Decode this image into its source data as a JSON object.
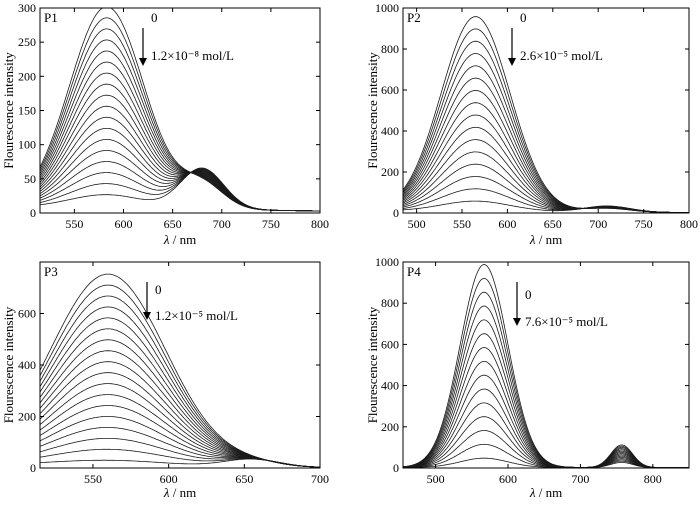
{
  "chart_data": [
    {
      "type": "line",
      "panel_label": "P1",
      "xlabel_symbol": "λ",
      "xlabel_unit": " / nm",
      "ylabel": "Flourescence intensity",
      "xlim": [
        515,
        800
      ],
      "ylim": [
        0,
        300
      ],
      "xticks": [
        550,
        600,
        650,
        700,
        750,
        800
      ],
      "yticks": [
        0,
        50,
        100,
        150,
        200,
        250,
        300
      ],
      "annotation_top": "0",
      "annotation_bottom": "1.2×10⁻⁸ mol/L",
      "series_count": 18,
      "peaks": [
        {
          "x": 583,
          "height_first": 295,
          "height_last": 20,
          "width": 38
        },
        {
          "x": 680,
          "height_first": 35,
          "height_last": 60,
          "width": 22
        }
      ],
      "baseline": [
        8,
        3
      ]
    },
    {
      "type": "line",
      "panel_label": "P2",
      "xlabel_symbol": "λ",
      "xlabel_unit": " / nm",
      "ylabel": "Flourescence intensity",
      "xlim": [
        485,
        800
      ],
      "ylim": [
        0,
        1000
      ],
      "xticks": [
        500,
        550,
        600,
        650,
        700,
        750,
        800
      ],
      "yticks": [
        0,
        200,
        400,
        600,
        800,
        1000
      ],
      "annotation_top": "0",
      "annotation_bottom": "2.6×10⁻⁵ mol/L",
      "series_count": 16,
      "peaks": [
        {
          "x": 565,
          "height_first": 950,
          "height_last": 50,
          "width": 38
        },
        {
          "x": 710,
          "height_first": 18,
          "height_last": 30,
          "width": 25
        }
      ],
      "baseline": [
        10,
        2
      ]
    },
    {
      "type": "line",
      "panel_label": "P3",
      "xlabel_symbol": "λ",
      "xlabel_unit": " / nm",
      "ylabel": "Flourescence intensity",
      "xlim": [
        515,
        700
      ],
      "ylim": [
        0,
        800
      ],
      "xticks": [
        550,
        600,
        650,
        700
      ],
      "yticks": [
        0,
        200,
        400,
        600
      ],
      "annotation_top": "0",
      "annotation_bottom": "1.2×10⁻⁵ mol/L",
      "series_count": 18,
      "peaks": [
        {
          "x": 560,
          "height_first": 745,
          "height_last": 22,
          "width": 38
        },
        {
          "x": 655,
          "height_first": 12,
          "height_last": 30,
          "width": 18
        }
      ],
      "baseline": [
        10,
        2
      ]
    },
    {
      "type": "line",
      "panel_label": "P4",
      "xlabel_symbol": "λ",
      "xlabel_unit": " / nm",
      "ylabel": "Flourescence intensity",
      "xlim": [
        455,
        850
      ],
      "ylim": [
        0,
        1000
      ],
      "xticks": [
        500,
        600,
        700,
        800
      ],
      "yticks": [
        0,
        200,
        400,
        600,
        800,
        1000
      ],
      "annotation_top": "0",
      "annotation_bottom": "7.6×10⁻⁵ mol/L",
      "series_count": 15,
      "peaks": [
        {
          "x": 567,
          "height_first": 985,
          "height_last": 45,
          "width": 33
        },
        {
          "x": 757,
          "height_first": 110,
          "height_last": 25,
          "width": 15
        }
      ],
      "baseline": [
        3,
        2
      ]
    }
  ]
}
